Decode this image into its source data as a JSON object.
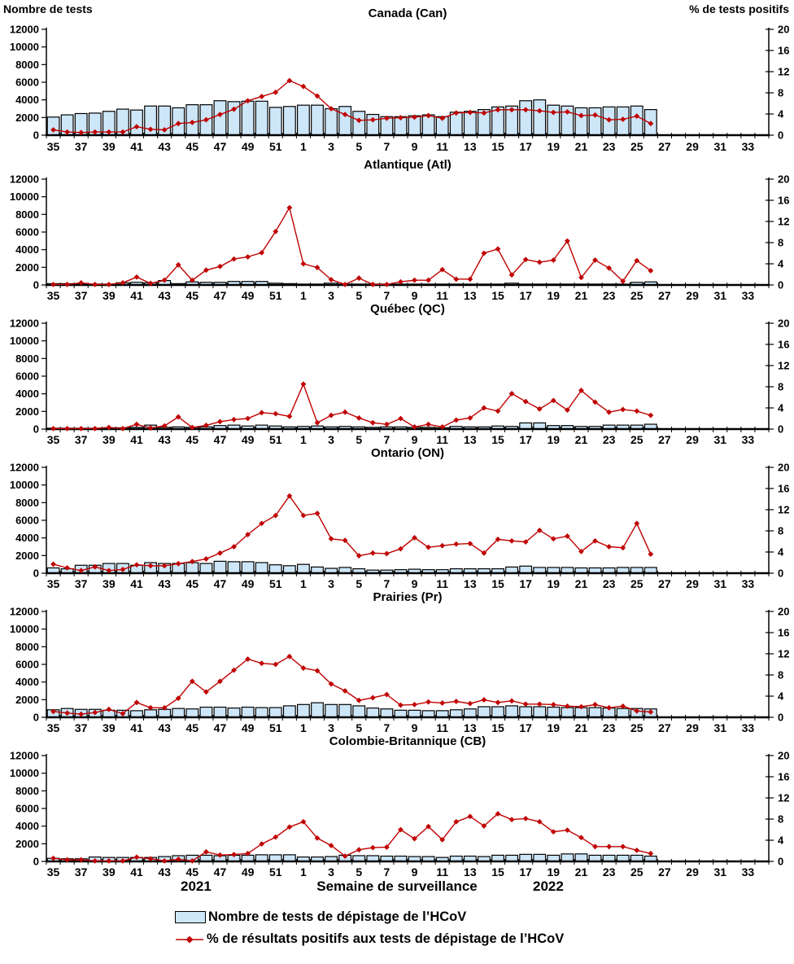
{
  "labels": {
    "left_axis_title": "Nombre de tests",
    "right_axis_title": "% de tests positifs",
    "x_axis_title": "Semaine de surveillance",
    "year_left": "2021",
    "year_right": "2022"
  },
  "legend": {
    "tests": "Nombre de tests de dépistage de l’HCoV",
    "pct": "% de résultats positifs aux tests de dépistage de l’HCoV"
  },
  "colors": {
    "bar_fill": "#CDE6F8",
    "bar_stroke": "#000000",
    "line": "#C00000",
    "axis": "#000000"
  },
  "axes": {
    "x_tick_labels": [
      "35",
      "37",
      "39",
      "41",
      "43",
      "45",
      "47",
      "49",
      "51",
      "1",
      "3",
      "5",
      "7",
      "9",
      "11",
      "13",
      "15",
      "17",
      "19",
      "21",
      "23",
      "25",
      "27",
      "29",
      "31",
      "33"
    ],
    "y_left_ticks": [
      0,
      2000,
      4000,
      6000,
      8000,
      10000,
      12000
    ],
    "y_right_ticks": [
      0,
      4,
      8,
      12,
      16,
      20
    ],
    "y_left_max": 12000,
    "y_right_max": 20,
    "weeks_total": 52
  },
  "chart_data": [
    {
      "id": "canada",
      "type": "bar",
      "title": "Canada (Can)",
      "ylim_left": [
        0,
        12000
      ],
      "ylim_right": [
        0,
        20
      ],
      "categories": [
        35,
        36,
        37,
        38,
        39,
        40,
        41,
        42,
        43,
        44,
        45,
        46,
        47,
        48,
        49,
        50,
        51,
        52,
        1,
        2,
        3,
        4,
        5,
        6,
        7,
        8,
        9,
        10,
        11,
        12,
        13,
        14,
        15,
        16,
        17,
        18,
        19,
        20,
        21,
        22,
        23,
        24,
        25,
        26
      ],
      "series": [
        {
          "name": "Nombre de tests de dépistage de l’HCoV",
          "type": "bar",
          "axis": "left",
          "values": [
            2050,
            2300,
            2450,
            2500,
            2700,
            2950,
            2850,
            3300,
            3300,
            3100,
            3450,
            3450,
            3900,
            3800,
            3850,
            3850,
            3150,
            3250,
            3400,
            3400,
            3000,
            3250,
            2700,
            2350,
            2100,
            2100,
            2200,
            2300,
            2100,
            2600,
            2700,
            2900,
            3200,
            3300,
            3900,
            4000,
            3400,
            3300,
            3100,
            3100,
            3200,
            3200,
            3300,
            2900
          ]
        },
        {
          "name": "% de résultats positifs aux tests de dépistage de l’HCoV",
          "type": "line",
          "axis": "right",
          "values": [
            1.0,
            0.6,
            0.5,
            0.6,
            0.6,
            0.6,
            1.6,
            1.1,
            1.0,
            2.2,
            2.4,
            2.9,
            3.9,
            4.9,
            6.5,
            7.3,
            8.1,
            10.3,
            9.2,
            7.4,
            5.0,
            3.9,
            2.8,
            2.9,
            3.2,
            3.3,
            3.4,
            3.7,
            3.2,
            4.2,
            4.3,
            4.2,
            4.8,
            4.8,
            4.8,
            4.6,
            4.3,
            4.4,
            3.7,
            3.8,
            2.9,
            3.0,
            3.6,
            2.2
          ]
        }
      ]
    },
    {
      "id": "atlantique",
      "type": "bar",
      "title": "Atlantique (Atl)",
      "ylim_left": [
        0,
        12000
      ],
      "ylim_right": [
        0,
        20
      ],
      "categories": [
        35,
        36,
        37,
        38,
        39,
        40,
        41,
        42,
        43,
        44,
        45,
        46,
        47,
        48,
        49,
        50,
        51,
        52,
        1,
        2,
        3,
        4,
        5,
        6,
        7,
        8,
        9,
        10,
        11,
        12,
        13,
        14,
        15,
        16,
        17,
        18,
        19,
        20,
        21,
        22,
        23,
        24,
        25,
        26
      ],
      "series": [
        {
          "name": "Nombre de tests de dépistage de l’HCoV",
          "type": "bar",
          "axis": "left",
          "values": [
            150,
            150,
            100,
            100,
            100,
            250,
            300,
            250,
            500,
            150,
            350,
            300,
            300,
            400,
            400,
            400,
            200,
            150,
            100,
            100,
            200,
            100,
            100,
            100,
            100,
            100,
            100,
            100,
            100,
            100,
            100,
            100,
            100,
            200,
            100,
            100,
            100,
            100,
            100,
            100,
            100,
            100,
            300,
            350
          ]
        },
        {
          "name": "% de résultats positifs aux tests de dépistage de l’HCoV",
          "type": "line",
          "axis": "right",
          "values": [
            0.1,
            0.1,
            0.4,
            0.1,
            0.1,
            0.4,
            1.5,
            0.3,
            0.9,
            3.8,
            0.9,
            2.8,
            3.5,
            4.9,
            5.3,
            6.1,
            10.1,
            14.6,
            4.0,
            3.3,
            1.0,
            0.1,
            1.3,
            0.1,
            0.1,
            0.6,
            0.9,
            0.9,
            2.9,
            1.1,
            1.1,
            6.0,
            6.8,
            1.9,
            4.8,
            4.3,
            4.7,
            8.3,
            1.4,
            4.7,
            3.2,
            0.7,
            4.6,
            2.7
          ]
        }
      ]
    },
    {
      "id": "quebec",
      "type": "bar",
      "title": "Québec (QC)",
      "ylim_left": [
        0,
        12000
      ],
      "ylim_right": [
        0,
        20
      ],
      "categories": [
        35,
        36,
        37,
        38,
        39,
        40,
        41,
        42,
        43,
        44,
        45,
        46,
        47,
        48,
        49,
        50,
        51,
        52,
        1,
        2,
        3,
        4,
        5,
        6,
        7,
        8,
        9,
        10,
        11,
        12,
        13,
        14,
        15,
        16,
        17,
        18,
        19,
        20,
        21,
        22,
        23,
        24,
        25,
        26
      ],
      "series": [
        {
          "name": "Nombre de tests de dépistage de l’HCoV",
          "type": "bar",
          "axis": "left",
          "values": [
            100,
            100,
            100,
            100,
            150,
            150,
            200,
            450,
            200,
            250,
            200,
            250,
            400,
            450,
            350,
            450,
            350,
            250,
            300,
            350,
            250,
            300,
            250,
            200,
            250,
            250,
            200,
            200,
            150,
            300,
            250,
            250,
            350,
            300,
            700,
            700,
            400,
            400,
            300,
            300,
            450,
            450,
            450,
            550
          ]
        },
        {
          "name": "% de résultats positifs aux tests de dépistage de l’HCoV",
          "type": "line",
          "axis": "right",
          "values": [
            0.1,
            0.1,
            0.1,
            0.1,
            0.3,
            0.1,
            0.9,
            0.2,
            0.6,
            2.3,
            0.3,
            0.7,
            1.4,
            1.8,
            2.0,
            3.1,
            2.9,
            2.4,
            8.5,
            1.2,
            2.6,
            3.2,
            2.1,
            1.2,
            0.9,
            2.0,
            0.4,
            0.9,
            0.4,
            1.7,
            2.1,
            4.0,
            3.4,
            6.7,
            5.2,
            3.8,
            5.4,
            3.6,
            7.3,
            5.1,
            3.2,
            3.7,
            3.4,
            2.6
          ]
        }
      ]
    },
    {
      "id": "ontario",
      "type": "bar",
      "title": "Ontario (ON)",
      "ylim_left": [
        0,
        12000
      ],
      "ylim_right": [
        0,
        20
      ],
      "categories": [
        35,
        36,
        37,
        38,
        39,
        40,
        41,
        42,
        43,
        44,
        45,
        46,
        47,
        48,
        49,
        50,
        51,
        52,
        1,
        2,
        3,
        4,
        5,
        6,
        7,
        8,
        9,
        10,
        11,
        12,
        13,
        14,
        15,
        16,
        17,
        18,
        19,
        20,
        21,
        22,
        23,
        24,
        25,
        26
      ],
      "series": [
        {
          "name": "Nombre de tests de dépistage de l’HCoV",
          "type": "bar",
          "axis": "left",
          "values": [
            600,
            500,
            900,
            900,
            1100,
            1100,
            900,
            1200,
            1100,
            1100,
            1200,
            1100,
            1350,
            1300,
            1300,
            1200,
            950,
            850,
            1000,
            700,
            550,
            650,
            500,
            350,
            350,
            400,
            450,
            400,
            400,
            500,
            500,
            500,
            500,
            700,
            800,
            650,
            650,
            650,
            600,
            600,
            600,
            650,
            650,
            650
          ]
        },
        {
          "name": "% de résultats positifs aux tests de dépistage de l’HCoV",
          "type": "line",
          "axis": "right",
          "values": [
            1.7,
            1.0,
            0.5,
            1.2,
            0.5,
            0.7,
            1.6,
            1.4,
            1.4,
            1.8,
            2.2,
            2.7,
            3.8,
            5.0,
            7.3,
            9.4,
            10.9,
            14.6,
            10.9,
            11.3,
            6.5,
            6.2,
            3.3,
            3.8,
            3.7,
            4.6,
            6.7,
            4.9,
            5.2,
            5.5,
            5.6,
            3.8,
            6.4,
            6.1,
            5.9,
            8.1,
            6.5,
            7.0,
            4.1,
            6.1,
            5.0,
            4.8,
            9.4,
            3.6
          ]
        }
      ]
    },
    {
      "id": "prairies",
      "type": "bar",
      "title": "Prairies (Pr)",
      "ylim_left": [
        0,
        12000
      ],
      "ylim_right": [
        0,
        20
      ],
      "categories": [
        35,
        36,
        37,
        38,
        39,
        40,
        41,
        42,
        43,
        44,
        45,
        46,
        47,
        48,
        49,
        50,
        51,
        52,
        1,
        2,
        3,
        4,
        5,
        6,
        7,
        8,
        9,
        10,
        11,
        12,
        13,
        14,
        15,
        16,
        17,
        18,
        19,
        20,
        21,
        22,
        23,
        24,
        25,
        26
      ],
      "series": [
        {
          "name": "Nombre de tests de dépistage de l’HCoV",
          "type": "bar",
          "axis": "left",
          "values": [
            850,
            1000,
            900,
            900,
            800,
            800,
            750,
            850,
            900,
            1000,
            950,
            1150,
            1150,
            1050,
            1150,
            1100,
            1100,
            1300,
            1450,
            1650,
            1450,
            1450,
            1300,
            1050,
            950,
            800,
            800,
            750,
            750,
            850,
            950,
            1200,
            1200,
            1300,
            1200,
            1200,
            1150,
            1100,
            1100,
            1100,
            1050,
            1000,
            1000,
            950
          ]
        },
        {
          "name": "% de résultats positifs aux tests de dépistage de l’HCoV",
          "type": "line",
          "axis": "right",
          "values": [
            1.1,
            0.8,
            0.6,
            0.9,
            1.5,
            0.7,
            2.8,
            1.8,
            1.8,
            3.6,
            6.8,
            4.8,
            6.8,
            8.9,
            11.0,
            10.2,
            10.0,
            11.5,
            9.3,
            8.8,
            6.3,
            5.0,
            3.2,
            3.7,
            4.3,
            2.3,
            2.4,
            2.9,
            2.7,
            3.0,
            2.6,
            3.3,
            2.8,
            3.1,
            2.5,
            2.5,
            2.4,
            2.1,
            2.0,
            2.4,
            1.8,
            2.1,
            1.2,
            1.0
          ]
        }
      ]
    },
    {
      "id": "colombie-britannique",
      "type": "bar",
      "title": "Colombie-Britannique (CB)",
      "ylim_left": [
        0,
        12000
      ],
      "ylim_right": [
        0,
        20
      ],
      "categories": [
        35,
        36,
        37,
        38,
        39,
        40,
        41,
        42,
        43,
        44,
        45,
        46,
        47,
        48,
        49,
        50,
        51,
        52,
        1,
        2,
        3,
        4,
        5,
        6,
        7,
        8,
        9,
        10,
        11,
        12,
        13,
        14,
        15,
        16,
        17,
        18,
        19,
        20,
        21,
        22,
        23,
        24,
        25,
        26
      ],
      "series": [
        {
          "name": "Nombre de tests de dépistage de l’HCoV",
          "type": "bar",
          "axis": "left",
          "values": [
            350,
            300,
            300,
            500,
            450,
            450,
            450,
            450,
            550,
            650,
            700,
            700,
            650,
            700,
            700,
            750,
            750,
            750,
            500,
            500,
            550,
            700,
            650,
            650,
            600,
            600,
            550,
            550,
            450,
            600,
            600,
            550,
            700,
            700,
            800,
            800,
            700,
            850,
            850,
            700,
            700,
            700,
            700,
            600
          ]
        },
        {
          "name": "% de résultats positifs aux tests de dépistage de l’HCoV",
          "type": "line",
          "axis": "right",
          "values": [
            0.6,
            0.3,
            0.3,
            0.1,
            0.1,
            0.1,
            0.8,
            0.5,
            0.1,
            0.4,
            0.1,
            1.8,
            1.2,
            1.3,
            1.5,
            3.3,
            4.6,
            6.5,
            7.5,
            4.4,
            3.0,
            1.0,
            2.2,
            2.6,
            2.7,
            6.0,
            4.3,
            6.6,
            4.1,
            7.5,
            8.5,
            6.7,
            9.0,
            7.9,
            8.1,
            7.5,
            5.6,
            5.9,
            4.5,
            2.8,
            2.8,
            2.8,
            2.1,
            1.5
          ]
        }
      ]
    }
  ]
}
